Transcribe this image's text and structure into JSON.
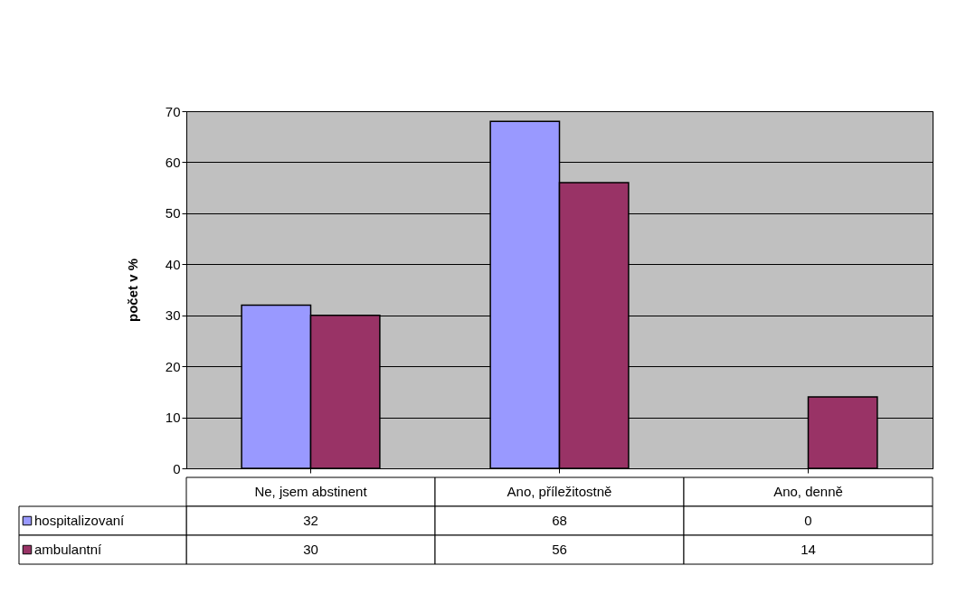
{
  "chart_data": {
    "type": "bar",
    "ylabel": "počet v %",
    "categories": [
      "Ne, jsem abstinent",
      "Ano, příležitostně",
      "Ano, denně"
    ],
    "series": [
      {
        "name": "hospitalizovaní",
        "color": "#9999ff",
        "values": [
          32,
          68,
          0
        ]
      },
      {
        "name": "ambulantní",
        "color": "#993366",
        "values": [
          30,
          56,
          14
        ]
      }
    ],
    "ylim": [
      0,
      70
    ],
    "yticks": [
      0,
      10,
      20,
      30,
      40,
      50,
      60,
      70
    ],
    "grid": "y",
    "legend": "bottom",
    "data_labels": true
  }
}
